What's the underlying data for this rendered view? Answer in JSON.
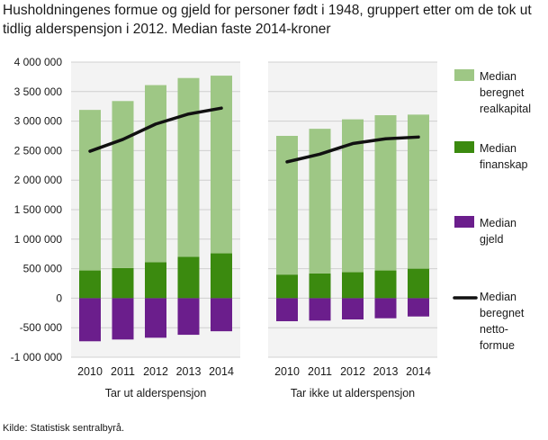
{
  "title": "Husholdningenes formue og gjeld for personer født i 1948, gruppert etter om de tok ut tidlig alderspensjon i 2012. Median faste 2014-kroner",
  "source": "Kilde: Statistisk sentralbyrå.",
  "colors": {
    "realkapital": "#9ec785",
    "finanskap": "#3b8a0f",
    "gjeld": "#6b1e8c",
    "netto": "#111111",
    "grid": "#d0d0d0",
    "panel": "#f3f3f3"
  },
  "chart_data": {
    "type": "bar",
    "stacked": true,
    "grid": true,
    "legend_position": "right",
    "ylim": [
      -1000000,
      4000000
    ],
    "yticks": [
      {
        "value": 4000000,
        "label": "4 000 000"
      },
      {
        "value": 3500000,
        "label": "3 500 000"
      },
      {
        "value": 3000000,
        "label": "3 000 000"
      },
      {
        "value": 2500000,
        "label": "2 500 000"
      },
      {
        "value": 2000000,
        "label": "2 000 000"
      },
      {
        "value": 1500000,
        "label": "1 500 000"
      },
      {
        "value": 1000000,
        "label": "1 000 000"
      },
      {
        "value": 500000,
        "label": "500 000"
      },
      {
        "value": 0,
        "label": "0"
      },
      {
        "value": -500000,
        "label": "-500 000"
      },
      {
        "value": -1000000,
        "label": "-1 000 000"
      }
    ],
    "groups": [
      {
        "label": "Tar ut alderspensjon",
        "categories": [
          "2010",
          "2011",
          "2012",
          "2013",
          "2014"
        ],
        "realkapital": [
          2720000,
          2830000,
          3000000,
          3030000,
          3010000
        ],
        "finanskap": [
          470000,
          510000,
          610000,
          700000,
          760000
        ],
        "gjeld": [
          -730000,
          -700000,
          -670000,
          -620000,
          -560000
        ],
        "netto": [
          2490000,
          2690000,
          2950000,
          3120000,
          3220000
        ]
      },
      {
        "label": "Tar ikke ut alderspensjon",
        "categories": [
          "2010",
          "2011",
          "2012",
          "2013",
          "2014"
        ],
        "realkapital": [
          2350000,
          2450000,
          2590000,
          2630000,
          2610000
        ],
        "finanskap": [
          400000,
          420000,
          440000,
          470000,
          500000
        ],
        "gjeld": [
          -390000,
          -380000,
          -360000,
          -340000,
          -310000
        ],
        "netto": [
          2310000,
          2440000,
          2620000,
          2700000,
          2730000
        ]
      }
    ],
    "series": [
      {
        "key": "realkapital",
        "name": "Median beregnet realkapital",
        "legend_lines": [
          "Median",
          "beregnet",
          "realkapital"
        ]
      },
      {
        "key": "finanskap",
        "name": "Median finanskap",
        "legend_lines": [
          "Median",
          "finanskap"
        ]
      },
      {
        "key": "gjeld",
        "name": "Median gjeld",
        "legend_lines": [
          "Median",
          "gjeld"
        ]
      },
      {
        "key": "netto",
        "name": "Median beregnet netto-formue",
        "legend_lines": [
          "Median",
          "beregnet",
          "netto-",
          "formue"
        ]
      }
    ]
  }
}
